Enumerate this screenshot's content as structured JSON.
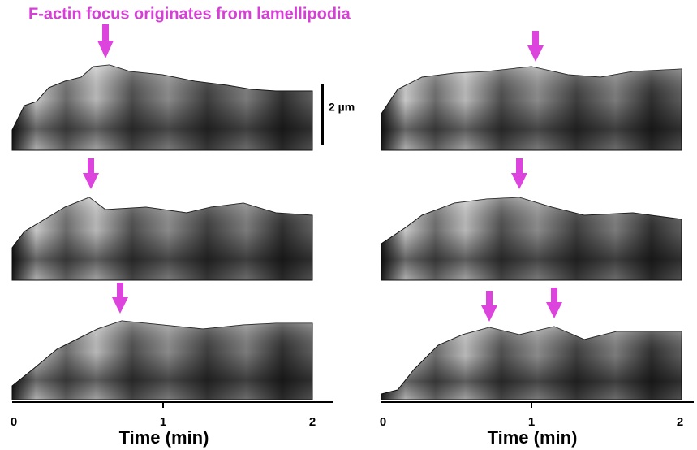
{
  "title": "F-actin focus originates from lamellipodia",
  "scale_bar": "2 µm",
  "axes": [
    {
      "label": "Time (min)",
      "ticks": [
        "0",
        "1",
        "2"
      ]
    },
    {
      "label": "Time (min)",
      "ticks": [
        "0",
        "1",
        "2"
      ]
    }
  ]
}
